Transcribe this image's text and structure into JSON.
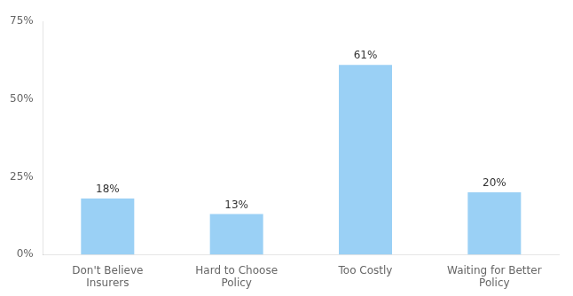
{
  "chart_data": {
    "type": "bar",
    "categories": [
      "Don't Believe\nInsurers",
      "Hard to Choose\nPolicy",
      "Too Costly",
      "Waiting for Better\nPolicy"
    ],
    "values": [
      18,
      13,
      61,
      20
    ],
    "value_labels": [
      "18%",
      "13%",
      "61%",
      "20%"
    ],
    "data_labels": true,
    "ylim": [
      0,
      75
    ],
    "yticks": [
      {
        "value": 0,
        "label": "0%"
      },
      {
        "value": 25,
        "label": "25%"
      },
      {
        "value": 50,
        "label": "50%"
      },
      {
        "value": 75,
        "label": "75%"
      }
    ],
    "grid": false
  }
}
